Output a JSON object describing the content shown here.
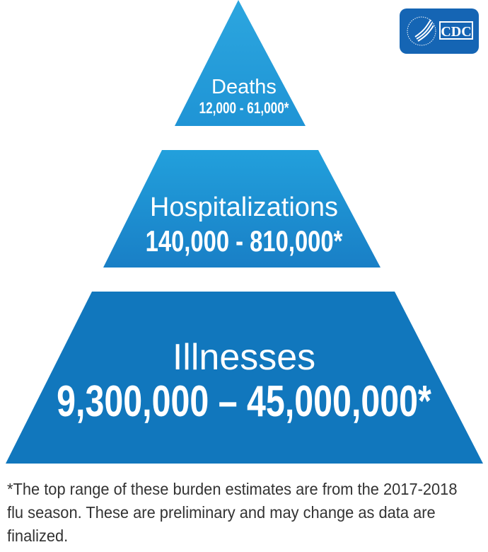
{
  "logo": {
    "text": "CDC",
    "icon": "hhs-eagle-icon",
    "color": "#1565b4"
  },
  "tiers": [
    {
      "name": "Deaths",
      "range": "12,000 - 61,000*",
      "color": "#239bd9"
    },
    {
      "name": "Hospitalizations",
      "range": "140,000 - 810,000*",
      "color": "#1b87cb"
    },
    {
      "name": "Illnesses",
      "range": "9,300,000 – 45,000,000*",
      "color": "#1177bd"
    }
  ],
  "footnote": "*The top range of these burden estimates are from the 2017-2018 flu season. These are preliminary and may change as data are finalized."
}
